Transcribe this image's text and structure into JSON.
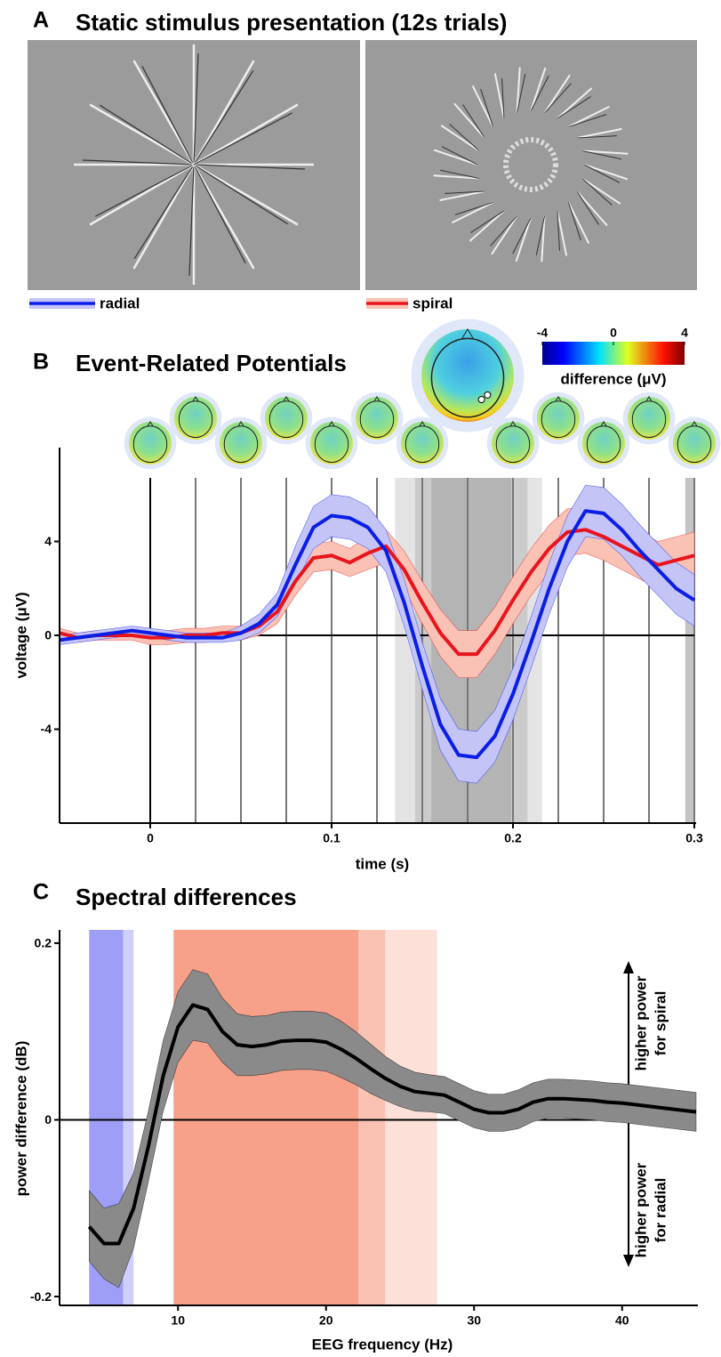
{
  "panel_a": {
    "panel_label": "A",
    "title": "Static stimulus presentation (12s trials)"
  },
  "chart_data": [
    {
      "type": "line",
      "panel_label": "B",
      "title": "Event-Related Potentials",
      "xlabel": "time (s)",
      "ylabel": "voltage (μV)",
      "xlim": [
        -0.05,
        0.3
      ],
      "xticks": [
        0,
        0.1,
        0.2,
        0.3
      ],
      "ylim": [
        -8,
        8
      ],
      "yticks": [
        -4,
        0,
        4
      ],
      "x": [
        -0.05,
        -0.04,
        -0.03,
        -0.02,
        -0.01,
        0,
        0.01,
        0.02,
        0.03,
        0.04,
        0.05,
        0.06,
        0.07,
        0.08,
        0.09,
        0.1,
        0.11,
        0.12,
        0.13,
        0.14,
        0.15,
        0.16,
        0.17,
        0.18,
        0.19,
        0.2,
        0.21,
        0.22,
        0.23,
        0.24,
        0.25,
        0.26,
        0.27,
        0.28,
        0.29,
        0.3
      ],
      "series": [
        {
          "name": "radial",
          "color": "#0a1ee6",
          "band_color": "#c4c4f7",
          "values": [
            -0.2,
            -0.1,
            0,
            0.1,
            0.2,
            0.1,
            0,
            -0.1,
            -0.1,
            -0.1,
            0.1,
            0.5,
            1.3,
            3.0,
            4.6,
            5.1,
            5.0,
            4.6,
            3.6,
            1.4,
            -1.3,
            -3.8,
            -5.1,
            -5.2,
            -4.3,
            -2.5,
            -0.3,
            2.0,
            4.0,
            5.3,
            5.2,
            4.5,
            3.6,
            2.8,
            2.0,
            1.5
          ],
          "lower": [
            -0.4,
            -0.3,
            -0.2,
            -0.1,
            0,
            -0.1,
            -0.2,
            -0.3,
            -0.3,
            -0.3,
            -0.2,
            0.1,
            0.8,
            2.2,
            3.7,
            4.2,
            4.1,
            3.7,
            2.7,
            0.4,
            -2.3,
            -4.9,
            -6.2,
            -6.3,
            -5.4,
            -3.6,
            -1.4,
            0.9,
            2.9,
            4.2,
            4.1,
            3.4,
            2.5,
            1.7,
            0.9,
            0.4
          ],
          "upper": [
            0,
            0.1,
            0.2,
            0.3,
            0.4,
            0.3,
            0.2,
            0.1,
            0.1,
            0.1,
            0.4,
            0.9,
            1.8,
            3.8,
            5.5,
            6.0,
            5.9,
            5.5,
            4.5,
            2.4,
            -0.3,
            -2.7,
            -4.0,
            -4.1,
            -3.2,
            -1.4,
            0.8,
            3.1,
            5.1,
            6.4,
            6.3,
            5.6,
            4.7,
            3.9,
            3.1,
            2.6
          ]
        },
        {
          "name": "spiral",
          "color": "#e8141e",
          "band_color": "#f9c2b4",
          "values": [
            0.1,
            -0.1,
            0,
            0,
            0,
            -0.1,
            -0.1,
            0,
            0,
            0.1,
            0.1,
            0.4,
            1.0,
            2.3,
            3.3,
            3.4,
            3.1,
            3.5,
            3.8,
            2.8,
            1.4,
            0.1,
            -0.8,
            -0.8,
            0.2,
            1.5,
            2.7,
            3.7,
            4.4,
            4.5,
            4.2,
            3.8,
            3.4,
            3.0,
            3.2,
            3.4
          ],
          "lower": [
            -0.1,
            -0.3,
            -0.2,
            -0.2,
            -0.2,
            -0.4,
            -0.4,
            -0.3,
            -0.3,
            -0.2,
            -0.2,
            0,
            0.5,
            1.7,
            2.7,
            2.8,
            2.5,
            2.8,
            3.1,
            2.0,
            0.5,
            -0.9,
            -1.8,
            -1.8,
            -0.8,
            0.5,
            1.7,
            2.7,
            3.4,
            3.5,
            3.2,
            2.8,
            2.4,
            2.0,
            2.2,
            2.4
          ],
          "upper": [
            0.3,
            0.1,
            0.2,
            0.2,
            0.2,
            0.2,
            0.2,
            0.3,
            0.3,
            0.4,
            0.4,
            0.8,
            1.5,
            2.9,
            3.9,
            4.0,
            3.7,
            4.2,
            4.5,
            3.6,
            2.3,
            1.1,
            0.2,
            0.2,
            1.2,
            2.5,
            3.7,
            4.7,
            5.4,
            5.5,
            5.2,
            4.8,
            4.4,
            4.0,
            4.2,
            4.4
          ]
        }
      ],
      "topo_times": [
        0,
        0.025,
        0.05,
        0.075,
        0.1,
        0.125,
        0.15,
        0.175,
        0.2,
        0.225,
        0.25,
        0.275,
        0.3
      ],
      "regions": [
        {
          "start": 0.135,
          "end": 0.216,
          "color": "#e4e4e4"
        },
        {
          "start": 0.146,
          "end": 0.208,
          "color": "#cbcbcb"
        },
        {
          "start": 0.155,
          "end": 0.199,
          "color": "#b4b4b4"
        },
        {
          "start": 0.295,
          "end": 0.3,
          "color": "#c4c4c4"
        }
      ],
      "colorbar": {
        "lim": [
          -4,
          4
        ],
        "ticks": [
          -4,
          0,
          4
        ],
        "label": "difference (μV)"
      }
    },
    {
      "type": "line",
      "panel_label": "C",
      "title": "Spectral differences",
      "xlabel": "EEG frequency (Hz)",
      "ylabel": "power difference (dB)",
      "xlim": [
        2,
        45
      ],
      "xticks": [
        10,
        20,
        30,
        40
      ],
      "ylim": [
        -0.21,
        0.215
      ],
      "yticks": [
        -0.2,
        0,
        0.2
      ],
      "x": [
        4,
        5,
        6,
        7,
        8,
        9,
        10,
        11,
        12,
        13,
        14,
        15,
        16,
        17,
        18,
        19,
        20,
        21,
        22,
        23,
        24,
        25,
        26,
        27,
        28,
        29,
        30,
        31,
        32,
        33,
        34,
        35,
        36,
        37,
        38,
        39,
        40,
        41,
        42,
        43,
        44,
        45
      ],
      "series": [
        {
          "color": "#000000",
          "band_color": "#8a8a8a",
          "values": [
            -0.121,
            -0.14,
            -0.14,
            -0.1,
            -0.03,
            0.05,
            0.105,
            0.13,
            0.125,
            0.1,
            0.085,
            0.083,
            0.085,
            0.089,
            0.09,
            0.09,
            0.088,
            0.08,
            0.07,
            0.058,
            0.047,
            0.038,
            0.032,
            0.03,
            0.028,
            0.02,
            0.012,
            0.008,
            0.008,
            0.012,
            0.02,
            0.024,
            0.024,
            0.023,
            0.022,
            0.02,
            0.019,
            0.017,
            0.015,
            0.013,
            0.011,
            0.009
          ],
          "lower": [
            -0.16,
            -0.18,
            -0.19,
            -0.145,
            -0.07,
            0.01,
            0.065,
            0.09,
            0.087,
            0.065,
            0.05,
            0.05,
            0.052,
            0.056,
            0.057,
            0.057,
            0.055,
            0.048,
            0.04,
            0.03,
            0.022,
            0.015,
            0.01,
            0.009,
            0.007,
            -0.001,
            -0.009,
            -0.013,
            -0.013,
            -0.01,
            -0.002,
            0.002,
            0.002,
            0.001,
            0,
            -0.002,
            -0.003,
            -0.005,
            -0.007,
            -0.009,
            -0.011,
            -0.013
          ],
          "upper": [
            -0.08,
            -0.1,
            -0.095,
            -0.06,
            0.01,
            0.09,
            0.145,
            0.17,
            0.165,
            0.138,
            0.12,
            0.117,
            0.118,
            0.122,
            0.123,
            0.123,
            0.121,
            0.112,
            0.1,
            0.086,
            0.072,
            0.061,
            0.054,
            0.051,
            0.049,
            0.041,
            0.033,
            0.029,
            0.029,
            0.034,
            0.042,
            0.046,
            0.046,
            0.045,
            0.044,
            0.042,
            0.041,
            0.039,
            0.037,
            0.035,
            0.033,
            0.031
          ]
        }
      ],
      "regions": [
        {
          "start": 4,
          "end": 6.3,
          "color": "#9e9ef7"
        },
        {
          "start": 6.3,
          "end": 7,
          "color": "#cfcffb"
        },
        {
          "start": 9.7,
          "end": 22.2,
          "color": "#f7a08a"
        },
        {
          "start": 22.2,
          "end": 24,
          "color": "#fac2b3"
        },
        {
          "start": 24,
          "end": 27.5,
          "color": "#fde0d8"
        }
      ],
      "annotations": [
        {
          "lines": [
            "higher power",
            "for spiral"
          ]
        },
        {
          "lines": [
            "higher power",
            "for radial"
          ]
        }
      ]
    }
  ]
}
